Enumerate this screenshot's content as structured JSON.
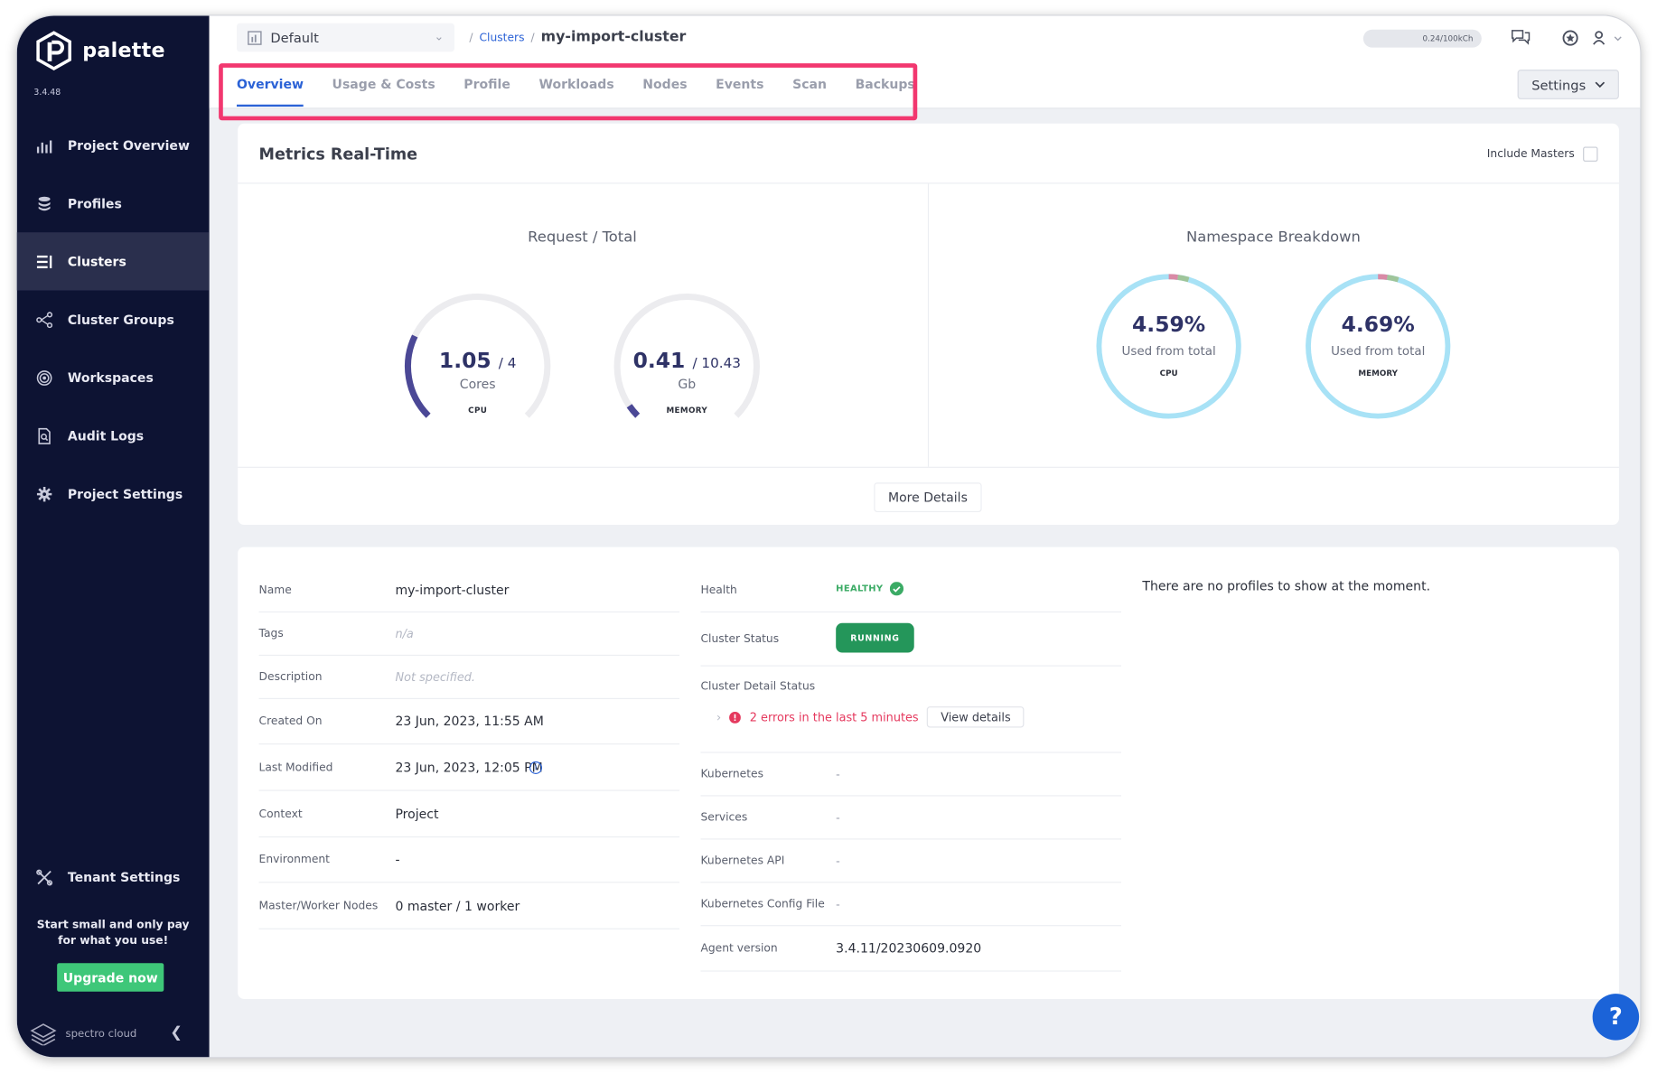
{
  "app": {
    "name": "palette",
    "version": "3.4.48",
    "vendor": "spectro cloud"
  },
  "sidebar": {
    "items": [
      {
        "label": "Project Overview",
        "icon": "bar-chart-icon",
        "active": false
      },
      {
        "label": "Profiles",
        "icon": "database-stack-icon",
        "active": false
      },
      {
        "label": "Clusters",
        "icon": "clusters-list-icon",
        "active": true
      },
      {
        "label": "Cluster Groups",
        "icon": "network-nodes-icon",
        "active": false
      },
      {
        "label": "Workspaces",
        "icon": "target-rings-icon",
        "active": false
      },
      {
        "label": "Audit Logs",
        "icon": "document-search-icon",
        "active": false
      },
      {
        "label": "Project Settings",
        "icon": "gear-icon",
        "active": false
      }
    ],
    "tenant_settings": "Tenant Settings",
    "promo_line1": "Start small and only pay",
    "promo_line2": "for what you use!",
    "upgrade_label": "Upgrade now"
  },
  "header": {
    "project": "Default",
    "breadcrumb_root": "Clusters",
    "breadcrumb_current": "my-import-cluster",
    "usage": "0.24/100kCh"
  },
  "tabs": [
    {
      "label": "Overview",
      "active": true
    },
    {
      "label": "Usage & Costs",
      "active": false
    },
    {
      "label": "Profile",
      "active": false
    },
    {
      "label": "Workloads",
      "active": false
    },
    {
      "label": "Nodes",
      "active": false
    },
    {
      "label": "Events",
      "active": false
    },
    {
      "label": "Scan",
      "active": false
    },
    {
      "label": "Backups",
      "active": false
    }
  ],
  "settings_label": "Settings",
  "metrics": {
    "title": "Metrics Real-Time",
    "include_masters": "Include Masters",
    "include_masters_checked": false,
    "request_total_title": "Request / Total",
    "cpu_gauge": {
      "value": "1.05",
      "total": "/ 4",
      "unit": "Cores",
      "caption": "CPU",
      "fraction": 0.2625
    },
    "memory_gauge": {
      "value": "0.41",
      "total": "/ 10.43",
      "unit": "Gb",
      "caption": "MEMORY",
      "fraction": 0.0393
    },
    "namespace_title": "Namespace Breakdown",
    "cpu_ring": {
      "percent": "4.59%",
      "sub": "Used from total",
      "caption": "CPU",
      "fraction": 0.0459
    },
    "memory_ring": {
      "percent": "4.69%",
      "sub": "Used from total",
      "caption": "MEMORY",
      "fraction": 0.0469
    },
    "more_details": "More Details"
  },
  "details": {
    "left": [
      {
        "label": "Name",
        "value": "my-import-cluster",
        "muted": false
      },
      {
        "label": "Tags",
        "value": "n/a",
        "muted": true
      },
      {
        "label": "Description",
        "value": "Not specified.",
        "muted": true
      },
      {
        "label": "Created On",
        "value": "23 Jun, 2023, 11:55 AM",
        "muted": false
      },
      {
        "label": "Last Modified",
        "value": "23 Jun, 2023, 12:05 PM",
        "muted": false
      },
      {
        "label": "Context",
        "value": "Project",
        "muted": false
      },
      {
        "label": "Environment",
        "value": "-",
        "muted": false
      },
      {
        "label": "Master/Worker Nodes",
        "value": "0 master / 1 worker",
        "muted": false
      }
    ],
    "health_label": "Health",
    "health_value": "HEALTHY",
    "status_label": "Cluster Status",
    "status_value": "RUNNING",
    "detail_status_label": "Cluster Detail Status",
    "errors_text": "2 errors in the last 5 minutes",
    "view_details": "View details",
    "right": [
      {
        "label": "Kubernetes",
        "value": "-"
      },
      {
        "label": "Services",
        "value": "-"
      },
      {
        "label": "Kubernetes API",
        "value": "-"
      },
      {
        "label": "Kubernetes Config File",
        "value": "-"
      },
      {
        "label": "Agent version",
        "value": "3.4.11/20230609.0920"
      }
    ],
    "no_profiles": "There are no profiles to show at the moment."
  },
  "colors": {
    "sidebar_bg": "#0d1333",
    "accent": "#2b62d6",
    "tab_highlight": "#f2376f",
    "gauge_fill": "#4b4896",
    "ring": "#a8e2f6",
    "healthy": "#3bab65",
    "running": "#24965a",
    "error": "#e5395e",
    "upgrade": "#3ec779"
  },
  "help_label": "?"
}
